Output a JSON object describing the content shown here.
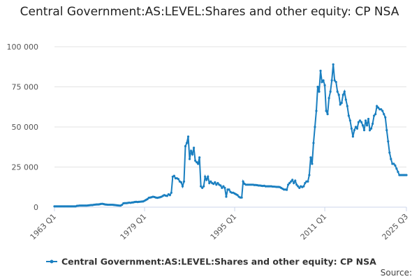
{
  "chart_data": {
    "type": "line",
    "title": "Central Government:AS:LEVEL:Shares and other equity: CP NSA",
    "source": "Source:",
    "categories": [
      "1963 Q1",
      null,
      null,
      null,
      null,
      null,
      null,
      null,
      null,
      null,
      null,
      null,
      null,
      null,
      null,
      null,
      null,
      null,
      null,
      null,
      null,
      null,
      null,
      null,
      null,
      null,
      null,
      null,
      null,
      null,
      null,
      null,
      null,
      null,
      null,
      null,
      null,
      null,
      null,
      null,
      null,
      null,
      null,
      null,
      null,
      null,
      null,
      null,
      null,
      null,
      null,
      null,
      null,
      null,
      null,
      null,
      null,
      null,
      null,
      null,
      null,
      null,
      null,
      null,
      "1979 Q1",
      null,
      null,
      null,
      null,
      null,
      null,
      null,
      null,
      null,
      null,
      null,
      null,
      null,
      null,
      null,
      null,
      null,
      null,
      null,
      null,
      null,
      null,
      null,
      null,
      null,
      null,
      null,
      null,
      null,
      null,
      null,
      null,
      null,
      null,
      null,
      null,
      null,
      null,
      null,
      null,
      null,
      null,
      null,
      null,
      null,
      null,
      null,
      null,
      null,
      null,
      null,
      null,
      null,
      null,
      null,
      null,
      null,
      null,
      null,
      null,
      null,
      null,
      null,
      "1995 Q1",
      null,
      null,
      null,
      null,
      null,
      null,
      null,
      null,
      null,
      null,
      null,
      null,
      null,
      null,
      null,
      null,
      null,
      null,
      null,
      null,
      null,
      null,
      null,
      null,
      null,
      null,
      null,
      null,
      null,
      null,
      null,
      null,
      null,
      null,
      null,
      null,
      null,
      null,
      null,
      null,
      null,
      null,
      null,
      null,
      null,
      null,
      null,
      null,
      null,
      null,
      null,
      null,
      null,
      null,
      null,
      null,
      null,
      null,
      null,
      null,
      null,
      null,
      null,
      "2011 Q1",
      null,
      null,
      null,
      null,
      null,
      null,
      null,
      null,
      null,
      null,
      null,
      null,
      null,
      null,
      null,
      null,
      null,
      null,
      null,
      null,
      null,
      null,
      null,
      null,
      null,
      null,
      null,
      null,
      null,
      null,
      null,
      null,
      null,
      null,
      null,
      null,
      null,
      null,
      null,
      null,
      null,
      null,
      null,
      null,
      null,
      null,
      null,
      null,
      null,
      null,
      null,
      null,
      null,
      null,
      null,
      null,
      null,
      "2025 Q3"
    ],
    "series": [
      {
        "name": "Central Government:AS:LEVEL:Shares and other equity: CP NSA",
        "color": "#1a7fc0",
        "values": [
          500,
          500,
          500,
          500,
          500,
          500,
          500,
          500,
          500,
          500,
          500,
          500,
          500,
          500,
          500,
          500,
          800,
          900,
          1000,
          1000,
          1000,
          1000,
          1000,
          1000,
          1100,
          1200,
          1300,
          1300,
          1500,
          1600,
          1700,
          1700,
          1800,
          2000,
          2100,
          1900,
          1700,
          1600,
          1500,
          1500,
          1500,
          1500,
          1400,
          1300,
          1200,
          1100,
          1000,
          1000,
          1500,
          2400,
          2500,
          2500,
          2600,
          2800,
          2700,
          2900,
          3000,
          3200,
          3300,
          3200,
          3300,
          3400,
          3500,
          3600,
          4000,
          4500,
          5000,
          5800,
          6000,
          6200,
          6500,
          6300,
          6000,
          5800,
          6000,
          6200,
          6500,
          7000,
          7500,
          7200,
          7000,
          8000,
          7500,
          9000,
          19000,
          19500,
          18000,
          18000,
          17500,
          16000,
          15500,
          13000,
          16000,
          38000,
          40000,
          44000,
          30000,
          35000,
          33000,
          37000,
          29000,
          28000,
          27000,
          31000,
          13000,
          12000,
          13000,
          19000,
          17000,
          19000,
          15000,
          16000,
          15000,
          14500,
          15500,
          14000,
          15000,
          14000,
          13500,
          12000,
          13000,
          12000,
          6500,
          11000,
          11000,
          9500,
          9000,
          9000,
          8500,
          8000,
          7500,
          6500,
          6000,
          6000,
          16000,
          14500,
          14000,
          14000,
          14000,
          14000,
          14000,
          14000,
          13800,
          13800,
          13700,
          13500,
          13500,
          13300,
          13200,
          13300,
          13000,
          13000,
          13000,
          13000,
          13000,
          12800,
          12800,
          12700,
          12600,
          12600,
          12500,
          12000,
          11500,
          11000,
          11000,
          10800,
          14000,
          15000,
          16000,
          17000,
          15000,
          16500,
          14000,
          13000,
          12000,
          13000,
          12500,
          13000,
          15000,
          16000,
          16000,
          20000,
          31000,
          27000,
          40000,
          50000,
          60000,
          75000,
          72000,
          85000,
          78000,
          79000,
          76000,
          60000,
          58000,
          68000,
          72000,
          79000,
          89000,
          79000,
          78000,
          72000,
          70000,
          64000,
          65000,
          70000,
          72000,
          67000,
          63000,
          57000,
          54000,
          49000,
          44000,
          48000,
          50000,
          49000,
          53000,
          54000,
          53000,
          51000,
          48000,
          54000,
          51000,
          55000,
          48000,
          49000,
          52000,
          57000,
          58000,
          63000,
          62000,
          61000,
          61000,
          60000,
          58000,
          56000,
          48000,
          41000,
          34000,
          30000,
          27000,
          27000,
          26000,
          24000,
          22000,
          20000,
          20000,
          20000,
          20000,
          20000,
          20000
        ]
      }
    ],
    "ylim": [
      0,
      100000
    ],
    "yticks": [
      0,
      {
        "value": 25000,
        "label": "25 000"
      },
      {
        "value": 50000,
        "label": "50 000"
      },
      {
        "value": 75000,
        "label": "75 000"
      },
      {
        "value": 100000,
        "label": "100 000"
      }
    ],
    "grid": true
  }
}
